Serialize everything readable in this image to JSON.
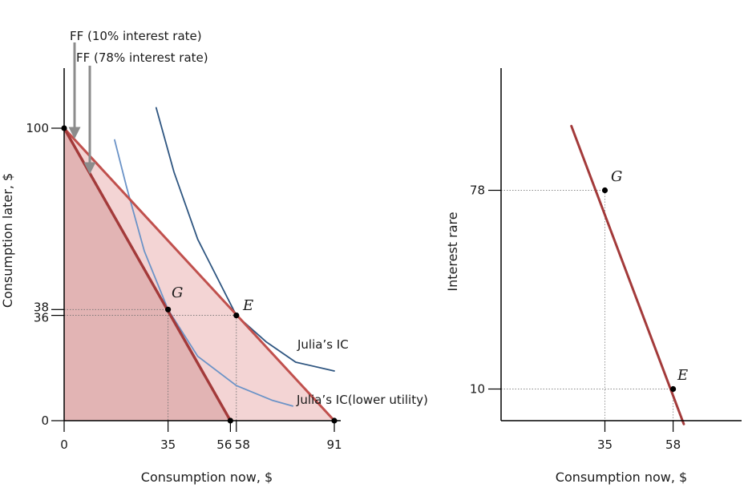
{
  "chart_data": [
    {
      "type": "line",
      "xlabel": "Consumption now, $",
      "ylabel": "Consumption later, $",
      "xlim": [
        0,
        100
      ],
      "ylim": [
        0,
        110
      ],
      "x_ticks": [
        "0",
        "35",
        "56",
        "58",
        "91"
      ],
      "y_ticks": [
        "0",
        "36",
        "38",
        "100"
      ],
      "series": [
        {
          "name": "FF (10% interest rate)",
          "x": [
            0,
            91
          ],
          "y": [
            100,
            0
          ],
          "color": "#c0504d"
        },
        {
          "name": "FF (78% interest rate)",
          "x": [
            0,
            56
          ],
          "y": [
            100,
            0
          ],
          "color": "#a33a3a"
        },
        {
          "name": "Julia’s IC",
          "x": [
            31,
            37,
            45,
            58,
            68,
            78,
            91
          ],
          "y": [
            107,
            85,
            62,
            36,
            27,
            20,
            17
          ],
          "color": "#2e5580"
        },
        {
          "name": "Julia’s IC(lower utility)",
          "x": [
            17,
            21,
            27,
            35,
            45,
            58,
            70,
            77
          ],
          "y": [
            96,
            80,
            58,
            38,
            22,
            12,
            7,
            5
          ],
          "color": "#6b93c7"
        }
      ],
      "points": [
        {
          "label": "G",
          "x": 35,
          "y": 38
        },
        {
          "label": "E",
          "x": 58,
          "y": 36
        },
        {
          "label": "",
          "x": 0,
          "y": 100
        },
        {
          "label": "",
          "x": 56,
          "y": 0
        },
        {
          "label": "",
          "x": 91,
          "y": 0
        }
      ],
      "annotations": [
        "FF (10% interest rate)",
        "FF (78% interest rate)",
        "Julia’s IC",
        "Julia’s IC(lower utility)"
      ],
      "colors": {
        "fill_dark": "#e2b4b4",
        "fill_light": "#f3d4d4",
        "arrow": "#8c8c8c",
        "guide": "#707070"
      }
    },
    {
      "type": "line",
      "xlabel": "Consumption now, $",
      "ylabel": "Interest rare",
      "xlim": [
        0,
        80
      ],
      "ylim": [
        -2,
        105
      ],
      "x_ticks": [
        "35",
        "58"
      ],
      "y_ticks": [
        "10",
        "78"
      ],
      "series": [
        {
          "name": "",
          "x": [
            23.7,
            61.6
          ],
          "y": [
            100,
            -2
          ],
          "color": "#a33a3a"
        }
      ],
      "points": [
        {
          "label": "G",
          "x": 35,
          "y": 78
        },
        {
          "label": "E",
          "x": 58,
          "y": 10
        }
      ]
    }
  ]
}
